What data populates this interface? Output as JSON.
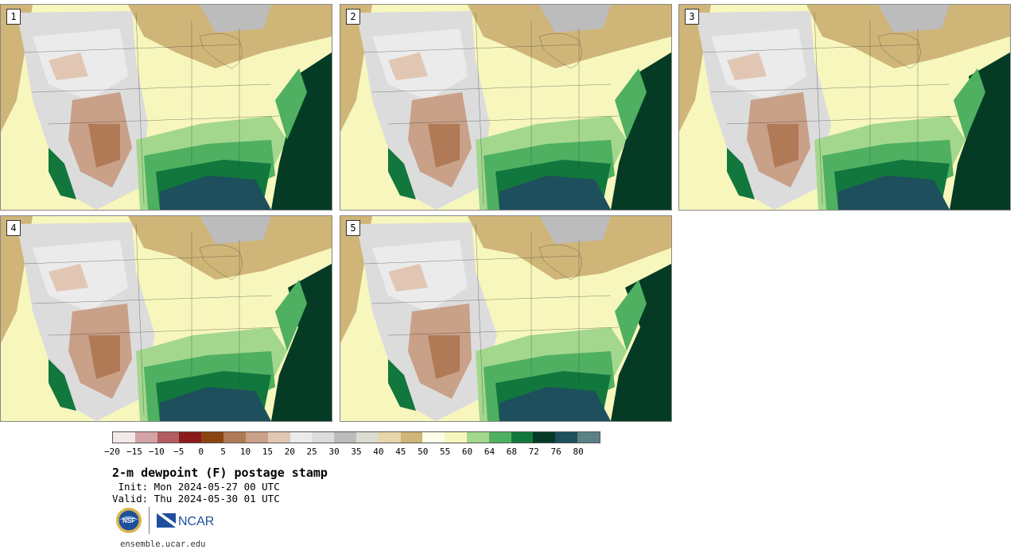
{
  "panels": [
    {
      "label": "1"
    },
    {
      "label": "2"
    },
    {
      "label": "3"
    },
    {
      "label": "4"
    },
    {
      "label": "5"
    }
  ],
  "colorbar": {
    "colors": [
      "#f3e9e9",
      "#d4a3a5",
      "#b25c61",
      "#8b1a1a",
      "#8b4513",
      "#b07a56",
      "#c9a088",
      "#e2c6b4",
      "#ebebeb",
      "#dcdcdc",
      "#bcbcbc",
      "#dcdcd2",
      "#e6d6aa",
      "#cfb578",
      "#fdfde8",
      "#f7f6bd",
      "#a3d78e",
      "#4fb061",
      "#11773d",
      "#053b25",
      "#1e4f5c",
      "#5c8184"
    ],
    "tick_labels": [
      "−20",
      "−15",
      "−10",
      "−5",
      "0",
      "5",
      "10",
      "15",
      "20",
      "25",
      "30",
      "35",
      "40",
      "45",
      "50",
      "55",
      "60",
      "64",
      "68",
      "72",
      "76",
      "80"
    ]
  },
  "title": "2-m dewpoint (F) postage stamp",
  "init": " Init: Mon 2024-05-27 00 UTC",
  "valid": "Valid: Thu 2024-05-30 01 UTC",
  "logos": {
    "nsf": "NSF",
    "ncar": "NCAR"
  },
  "website": "ensemble.ucar.edu"
}
